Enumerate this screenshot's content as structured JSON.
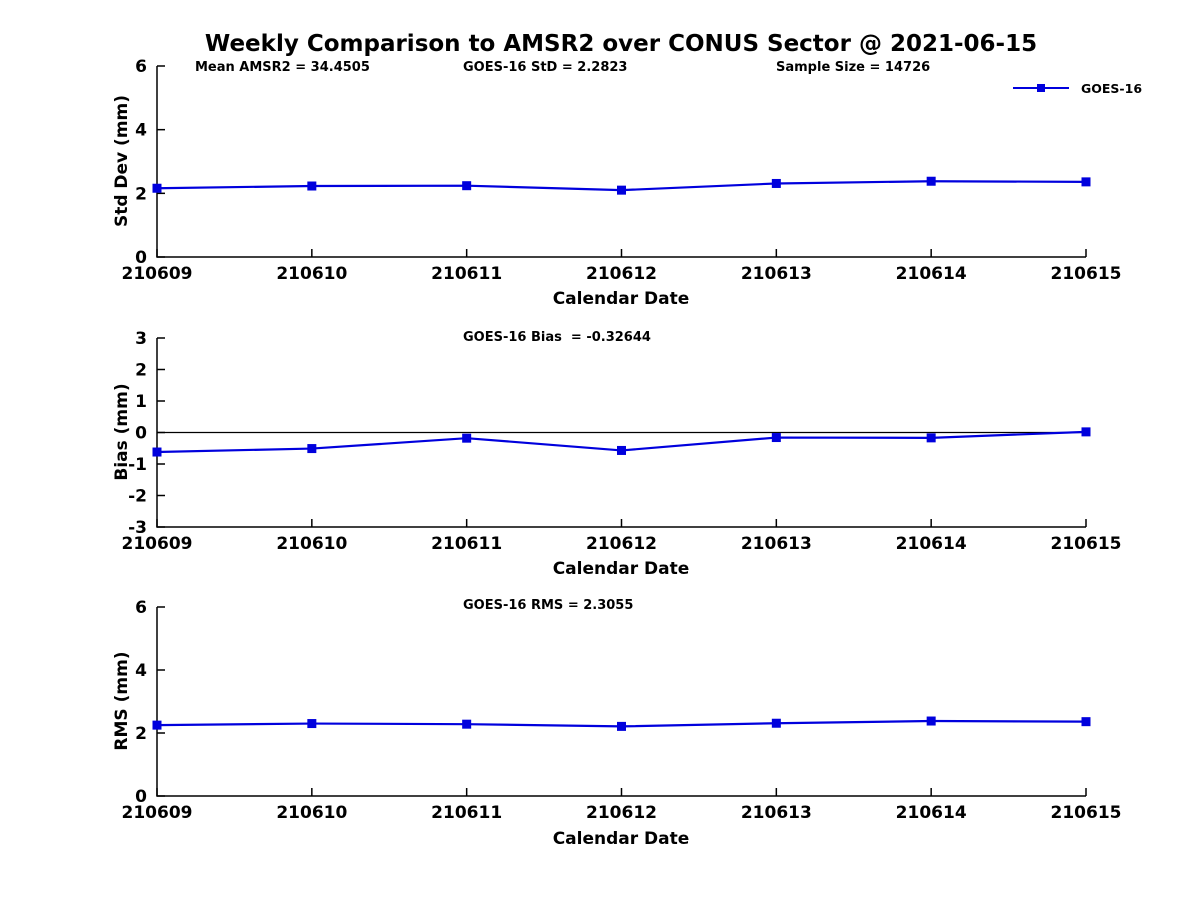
{
  "title": "Weekly Comparison to AMSR2 over CONUS Sector @ 2021-06-15",
  "annotations": {
    "mean_amsr2": "Mean AMSR2 = 34.4505",
    "goes16_std": "GOES-16 StD = 2.2823",
    "sample_size": "Sample Size = 14726",
    "goes16_bias": "GOES-16 Bias  = -0.32644",
    "goes16_rms": "GOES-16 RMS = 2.3055"
  },
  "legend": {
    "label": "GOES-16",
    "marker": "filled-square",
    "position": "top-right"
  },
  "colors": {
    "series": "#0000dd",
    "axis": "#000000",
    "background": "#ffffff"
  },
  "chart_data": [
    {
      "type": "line",
      "panel": "std-dev",
      "x": [
        "210609",
        "210610",
        "210611",
        "210612",
        "210613",
        "210614",
        "210615"
      ],
      "series": [
        {
          "name": "GOES-16",
          "values": [
            2.16,
            2.23,
            2.24,
            2.1,
            2.31,
            2.38,
            2.36
          ]
        }
      ],
      "ylabel": "Std Dev (mm)",
      "xlabel": "Calendar Date",
      "ylim": [
        0,
        6
      ],
      "yticks": [
        0,
        2,
        4,
        6
      ],
      "grid": false,
      "zero_line": false
    },
    {
      "type": "line",
      "panel": "bias",
      "x": [
        "210609",
        "210610",
        "210611",
        "210612",
        "210613",
        "210614",
        "210615"
      ],
      "series": [
        {
          "name": "GOES-16",
          "values": [
            -0.62,
            -0.51,
            -0.18,
            -0.57,
            -0.16,
            -0.17,
            0.02
          ]
        }
      ],
      "ylabel": "Bias (mm)",
      "xlabel": "Calendar Date",
      "ylim": [
        -3,
        3
      ],
      "yticks": [
        -3,
        -2,
        -1,
        0,
        1,
        2,
        3
      ],
      "grid": false,
      "zero_line": true
    },
    {
      "type": "line",
      "panel": "rms",
      "x": [
        "210609",
        "210610",
        "210611",
        "210612",
        "210613",
        "210614",
        "210615"
      ],
      "series": [
        {
          "name": "GOES-16",
          "values": [
            2.25,
            2.3,
            2.28,
            2.21,
            2.31,
            2.38,
            2.36
          ]
        }
      ],
      "ylabel": "RMS (mm)",
      "xlabel": "Calendar Date",
      "ylim": [
        0,
        6
      ],
      "yticks": [
        0,
        2,
        4,
        6
      ],
      "grid": false,
      "zero_line": false
    }
  ]
}
